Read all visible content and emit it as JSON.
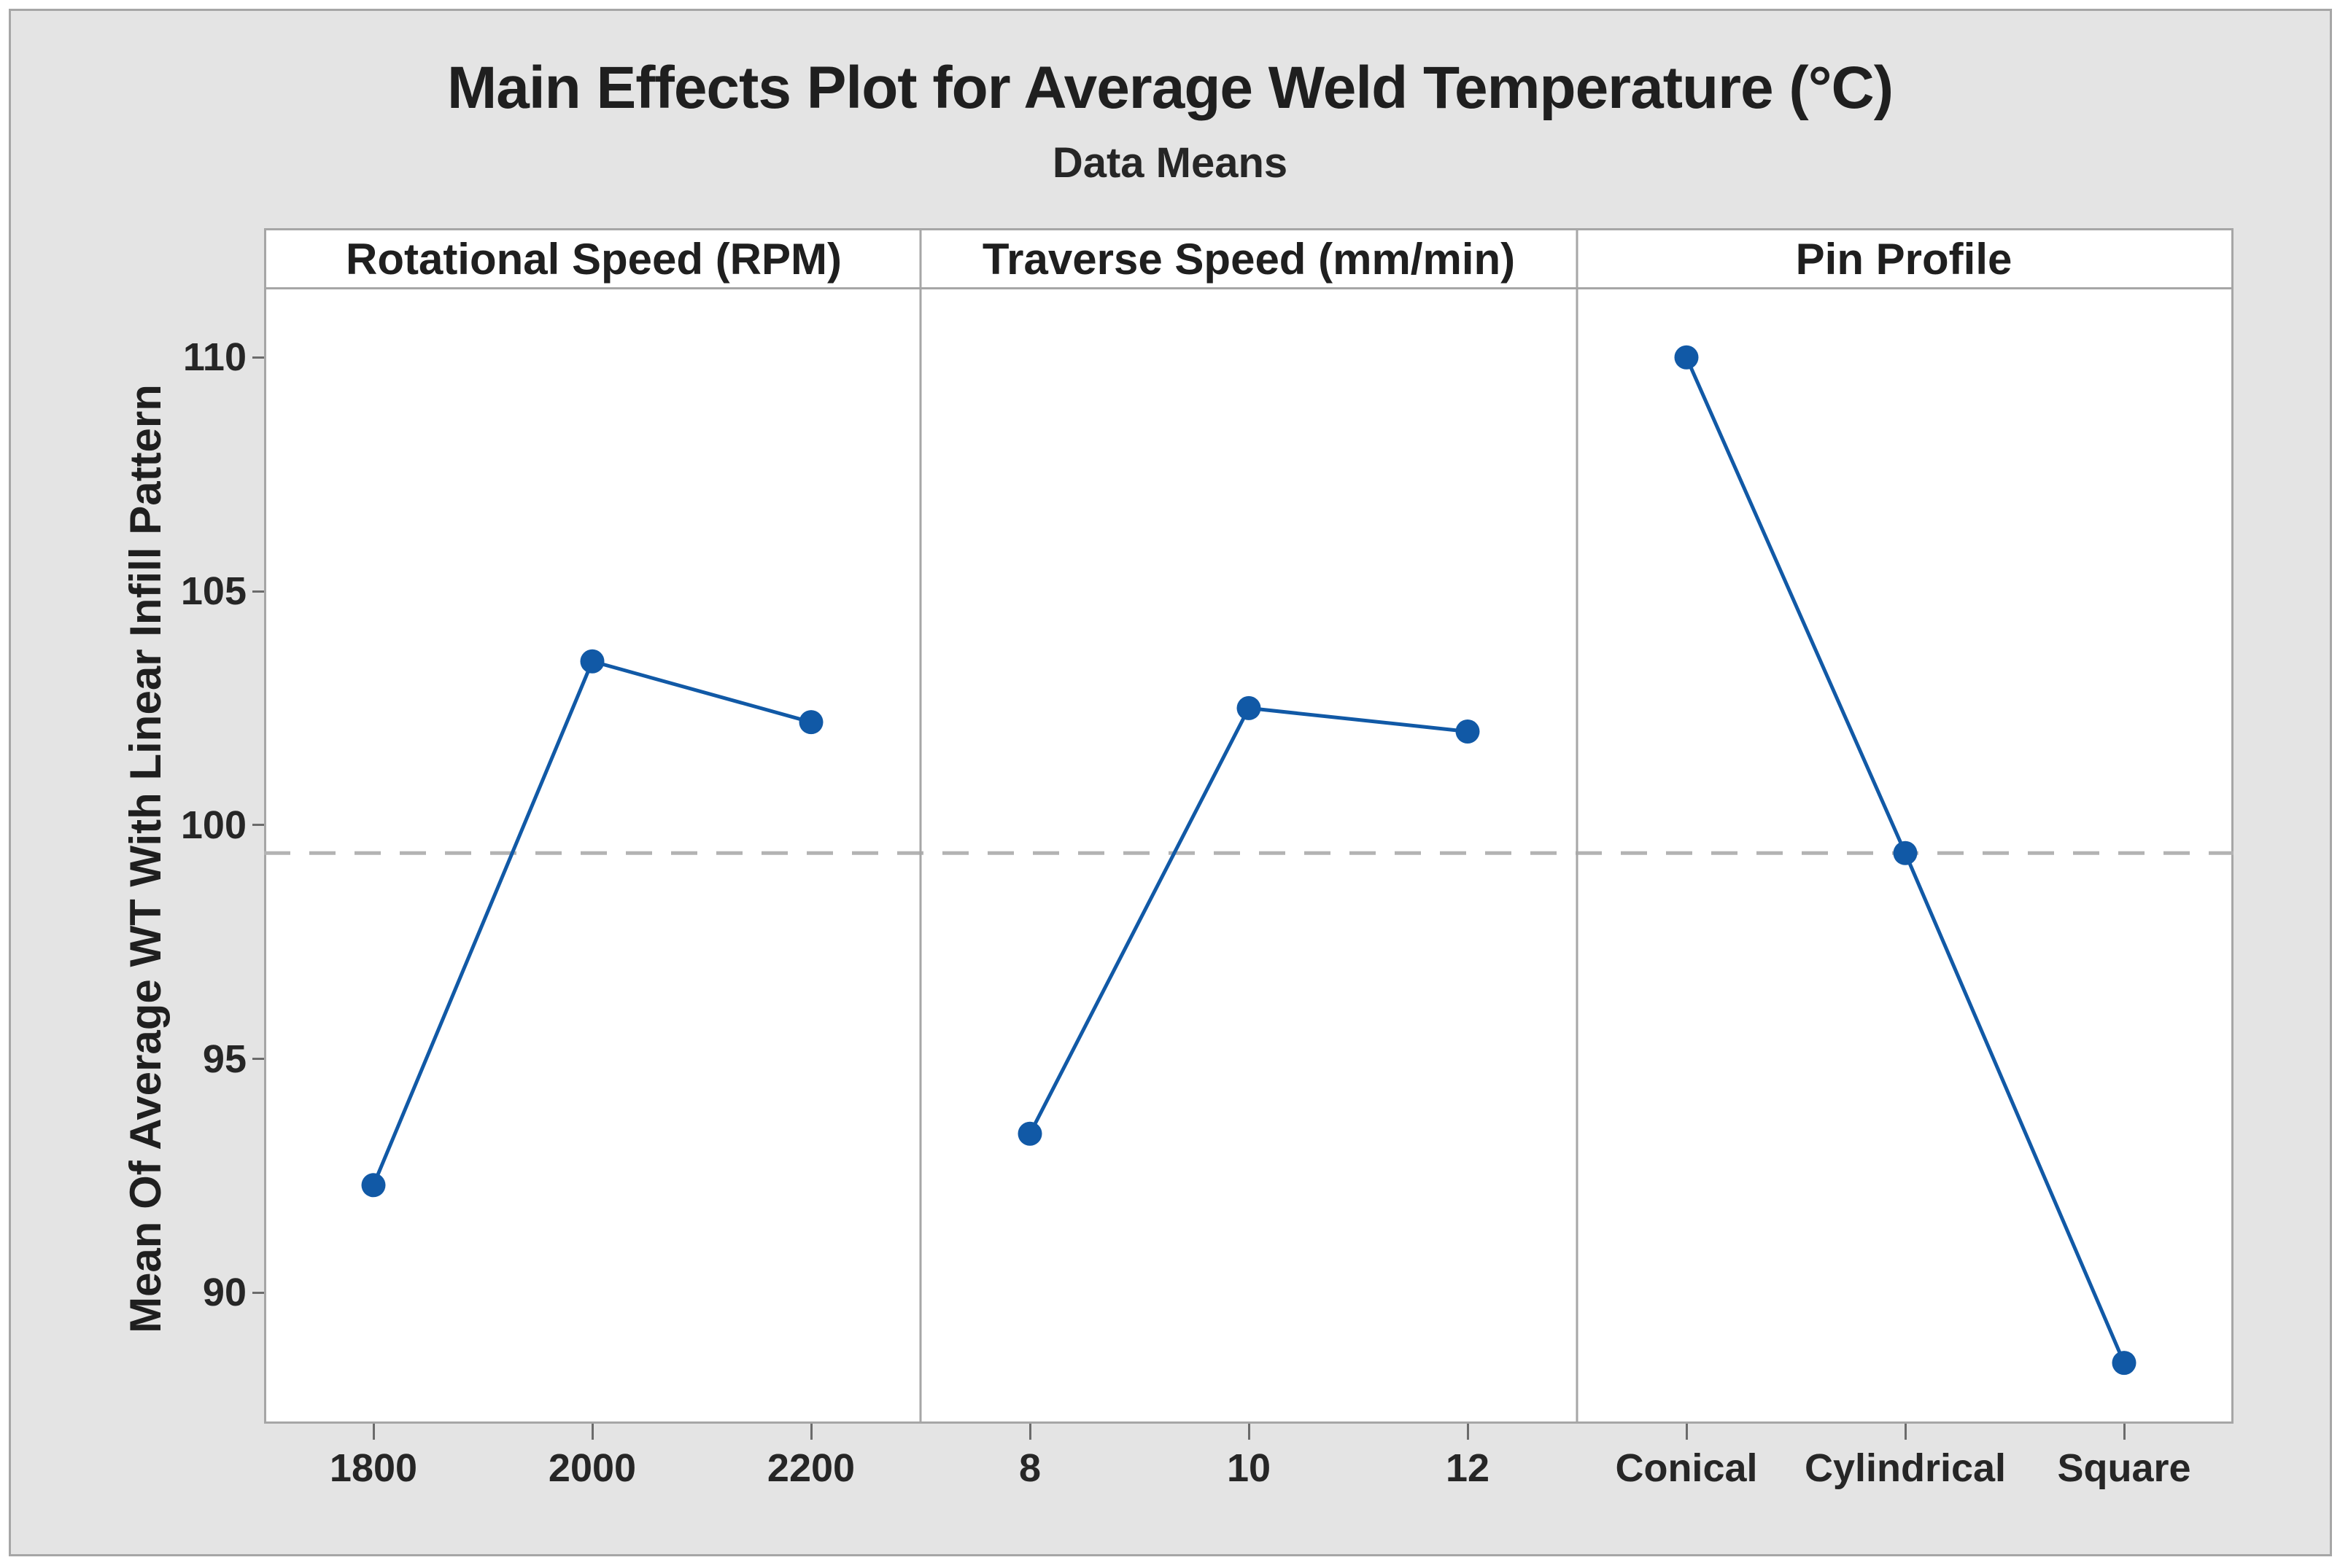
{
  "chart_data": {
    "type": "line",
    "title": "Main Effects Plot for Average Weld Temperature (°C)",
    "subtitle": "Data Means",
    "ylabel": "Mean Of Average WT With Linear Infill Pattern",
    "yticks": [
      110,
      105,
      100,
      95,
      90
    ],
    "ylim": [
      87.2,
      111.5
    ],
    "grand_mean": 99.4,
    "grand_mean_style": "dashed",
    "grid": "off",
    "legend": "none",
    "panels": [
      {
        "factor": "Rotational Speed (RPM)",
        "categories": [
          "1800",
          "2000",
          "2200"
        ],
        "values": [
          92.3,
          103.5,
          102.2
        ]
      },
      {
        "factor": "Traverse Speed (mm/min)",
        "categories": [
          "8",
          "10",
          "12"
        ],
        "values": [
          93.4,
          102.5,
          102.0
        ]
      },
      {
        "factor": "Pin Profile",
        "categories": [
          "Conical",
          "Cylindrical",
          "Square"
        ],
        "values": [
          110.0,
          99.4,
          88.5
        ]
      }
    ]
  },
  "colors": {
    "line": "#1159A6",
    "marker": "#1159A6",
    "grand_mean_line": "#B3B3B3",
    "canvas": "#E4E4E4",
    "plot_background": "#FFFFFF",
    "frame": "#A6A6A6",
    "tick_mark": "#6B6B6B",
    "text": "#262626"
  }
}
